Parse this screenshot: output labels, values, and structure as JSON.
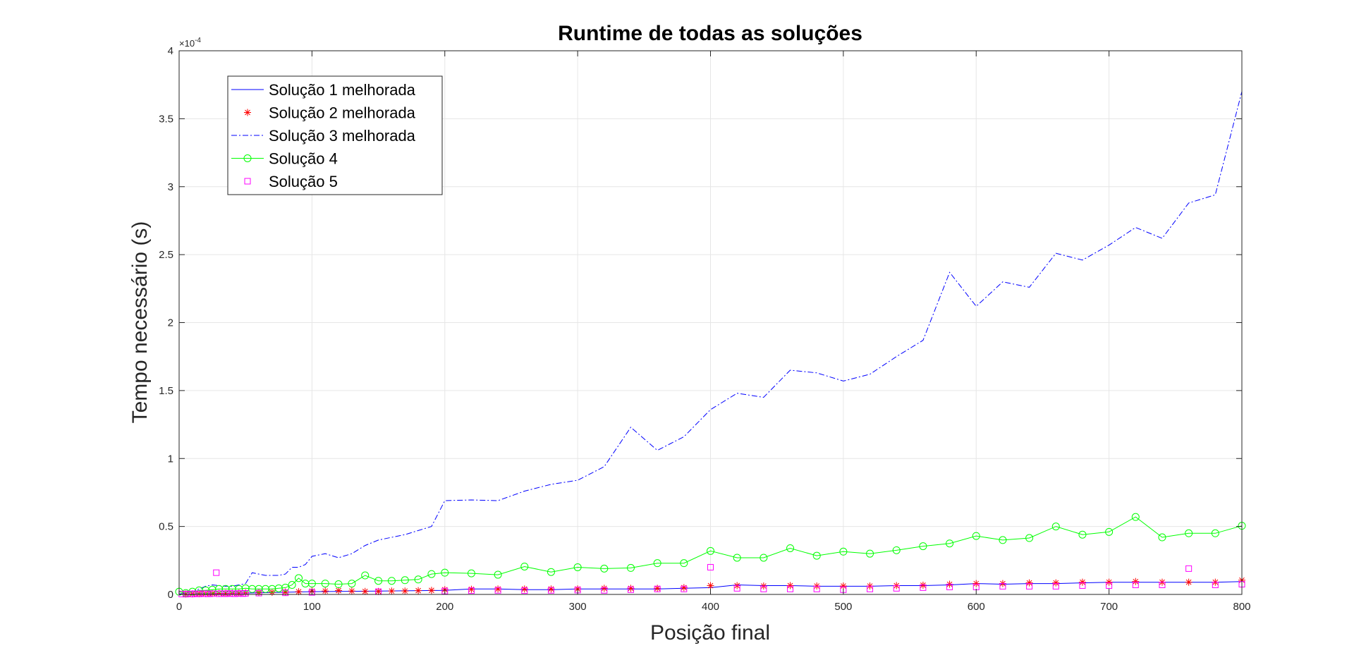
{
  "chart_data": {
    "type": "line",
    "title": "Runtime de todas as soluções",
    "xlabel": "Posição final",
    "ylabel": "Tempo necessário (s)",
    "xlim": [
      0,
      800
    ],
    "ylim": [
      0,
      4
    ],
    "y_exponent_label": "×10",
    "y_exponent_power": "-4",
    "y_multiplier": "1e-4",
    "grid": true,
    "legend_position": "top-left",
    "xticks": [
      0,
      100,
      200,
      300,
      400,
      500,
      600,
      700,
      800
    ],
    "yticks": [
      0,
      0.5,
      1,
      1.5,
      2,
      2.5,
      3,
      3.5,
      4
    ],
    "series": [
      {
        "name": "Solução 1 melhorada",
        "color": "#0000ff",
        "style": "solid",
        "marker": "none",
        "x": [
          0,
          50,
          100,
          150,
          200,
          220,
          240,
          260,
          280,
          300,
          320,
          340,
          360,
          380,
          400,
          420,
          440,
          460,
          480,
          500,
          520,
          540,
          560,
          580,
          600,
          620,
          640,
          660,
          680,
          700,
          720,
          740,
          760,
          780,
          800
        ],
        "y": [
          0.002,
          0.01,
          0.02,
          0.025,
          0.03,
          0.04,
          0.04,
          0.035,
          0.035,
          0.04,
          0.04,
          0.04,
          0.04,
          0.045,
          0.05,
          0.07,
          0.065,
          0.065,
          0.06,
          0.06,
          0.06,
          0.065,
          0.065,
          0.07,
          0.08,
          0.075,
          0.08,
          0.08,
          0.085,
          0.09,
          0.09,
          0.09,
          0.09,
          0.09,
          0.095
        ]
      },
      {
        "name": "Solução 2 melhorada",
        "color": "#ff0000",
        "style": "none",
        "marker": "star",
        "x": [
          5,
          10,
          15,
          20,
          25,
          30,
          35,
          40,
          45,
          50,
          60,
          70,
          80,
          90,
          100,
          110,
          120,
          130,
          140,
          150,
          160,
          170,
          180,
          190,
          200,
          220,
          240,
          260,
          280,
          300,
          320,
          340,
          360,
          380,
          400,
          420,
          440,
          460,
          480,
          500,
          520,
          540,
          560,
          580,
          600,
          620,
          640,
          660,
          680,
          700,
          720,
          740,
          760,
          780,
          800
        ],
        "y": [
          0.003,
          0.004,
          0.005,
          0.006,
          0.007,
          0.008,
          0.008,
          0.009,
          0.01,
          0.012,
          0.014,
          0.016,
          0.018,
          0.02,
          0.025,
          0.025,
          0.028,
          0.025,
          0.022,
          0.022,
          0.025,
          0.025,
          0.028,
          0.03,
          0.035,
          0.038,
          0.04,
          0.04,
          0.04,
          0.04,
          0.045,
          0.045,
          0.045,
          0.05,
          0.065,
          0.065,
          0.062,
          0.065,
          0.062,
          0.062,
          0.062,
          0.065,
          0.068,
          0.075,
          0.08,
          0.08,
          0.085,
          0.085,
          0.09,
          0.09,
          0.095,
          0.09,
          0.09,
          0.09,
          0.105
        ]
      },
      {
        "name": "Solução 3 melhorada",
        "color": "#0000ff",
        "style": "dashdot",
        "marker": "none",
        "x": [
          0,
          5,
          10,
          15,
          20,
          25,
          30,
          35,
          40,
          45,
          50,
          55,
          60,
          65,
          70,
          75,
          80,
          85,
          90,
          95,
          100,
          110,
          120,
          130,
          140,
          150,
          160,
          170,
          180,
          190,
          200,
          220,
          240,
          260,
          280,
          300,
          320,
          340,
          360,
          380,
          400,
          420,
          440,
          460,
          480,
          500,
          520,
          540,
          560,
          580,
          600,
          620,
          640,
          660,
          680,
          700,
          720,
          740,
          760,
          780,
          800
        ],
        "y": [
          0.003,
          0.01,
          0.02,
          0.04,
          0.06,
          0.07,
          0.065,
          0.06,
          0.06,
          0.07,
          0.08,
          0.16,
          0.15,
          0.14,
          0.14,
          0.14,
          0.15,
          0.2,
          0.2,
          0.22,
          0.28,
          0.3,
          0.27,
          0.3,
          0.36,
          0.4,
          0.42,
          0.44,
          0.47,
          0.5,
          0.69,
          0.695,
          0.69,
          0.76,
          0.81,
          0.84,
          0.94,
          1.23,
          1.06,
          1.16,
          1.36,
          1.48,
          1.45,
          1.65,
          1.63,
          1.57,
          1.62,
          1.75,
          1.87,
          2.37,
          2.12,
          2.3,
          2.26,
          2.51,
          2.46,
          2.57,
          2.7,
          2.62,
          2.88,
          2.94,
          3.7
        ]
      },
      {
        "name": "Solução 4",
        "color": "#00ff00",
        "style": "solid",
        "marker": "circle",
        "x": [
          0,
          5,
          10,
          15,
          20,
          25,
          30,
          35,
          40,
          45,
          50,
          55,
          60,
          65,
          70,
          75,
          80,
          85,
          90,
          95,
          100,
          110,
          120,
          130,
          140,
          150,
          160,
          170,
          180,
          190,
          200,
          220,
          240,
          260,
          280,
          300,
          320,
          340,
          360,
          380,
          400,
          420,
          440,
          460,
          480,
          500,
          520,
          540,
          560,
          580,
          600,
          620,
          640,
          660,
          680,
          700,
          720,
          740,
          760,
          780,
          800
        ],
        "y": [
          0.02,
          0.01,
          0.02,
          0.03,
          0.03,
          0.035,
          0.04,
          0.04,
          0.04,
          0.04,
          0.045,
          0.04,
          0.04,
          0.04,
          0.04,
          0.045,
          0.05,
          0.07,
          0.12,
          0.08,
          0.08,
          0.08,
          0.075,
          0.08,
          0.14,
          0.1,
          0.1,
          0.105,
          0.11,
          0.15,
          0.16,
          0.155,
          0.145,
          0.205,
          0.165,
          0.2,
          0.19,
          0.195,
          0.23,
          0.23,
          0.32,
          0.27,
          0.27,
          0.34,
          0.285,
          0.315,
          0.3,
          0.325,
          0.355,
          0.375,
          0.43,
          0.4,
          0.415,
          0.5,
          0.44,
          0.46,
          0.57,
          0.42,
          0.45,
          0.45,
          0.505
        ]
      },
      {
        "name": "Solução 5",
        "color": "#ff00ff",
        "style": "none",
        "marker": "square",
        "x": [
          2,
          5,
          8,
          10,
          12,
          15,
          18,
          20,
          22,
          25,
          28,
          30,
          32,
          35,
          38,
          40,
          42,
          45,
          48,
          50,
          60,
          80,
          100,
          150,
          200,
          220,
          240,
          260,
          280,
          300,
          320,
          340,
          360,
          380,
          400,
          420,
          440,
          460,
          480,
          500,
          520,
          540,
          560,
          580,
          600,
          620,
          640,
          660,
          680,
          700,
          720,
          740,
          760,
          780,
          800
        ],
        "y": [
          0.003,
          0.002,
          0.004,
          0.003,
          0.005,
          0.004,
          0.006,
          0.005,
          0.004,
          0.006,
          0.16,
          0.005,
          0.006,
          0.005,
          0.007,
          0.006,
          0.005,
          0.007,
          0.006,
          0.008,
          0.01,
          0.012,
          0.015,
          0.02,
          0.025,
          0.028,
          0.03,
          0.028,
          0.03,
          0.032,
          0.03,
          0.035,
          0.04,
          0.04,
          0.2,
          0.045,
          0.04,
          0.04,
          0.04,
          0.035,
          0.04,
          0.045,
          0.05,
          0.055,
          0.055,
          0.06,
          0.06,
          0.06,
          0.065,
          0.065,
          0.07,
          0.07,
          0.19,
          0.07,
          0.075
        ]
      }
    ]
  }
}
